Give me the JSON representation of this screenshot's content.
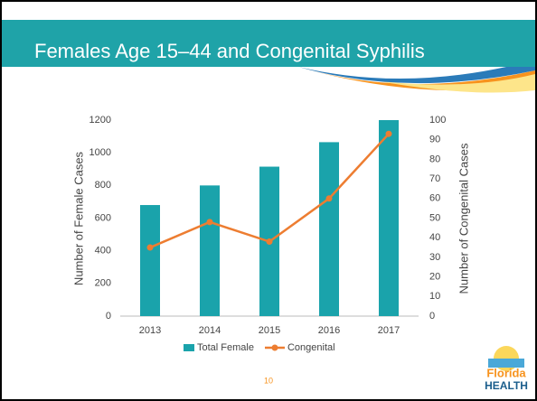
{
  "title": "Females Age 15–44 and Congenital Syphilis",
  "page_number": "10",
  "logo": {
    "line1": "Florida",
    "line2": "HEALTH"
  },
  "chart_data": {
    "type": "bar_line",
    "categories": [
      "2013",
      "2014",
      "2015",
      "2016",
      "2017"
    ],
    "series": [
      {
        "name": "Total Female",
        "color": "#1aa3ab",
        "type": "bar",
        "values": [
          680,
          800,
          915,
          1065,
          1200
        ]
      },
      {
        "name": "Congenital",
        "color": "#ed7d31",
        "type": "line",
        "axis": "y2",
        "values": [
          35,
          48,
          38,
          60,
          93
        ]
      }
    ],
    "ylabel": "Number of Female Cases",
    "y2label": "Number of Congenital Cases",
    "ylim": [
      0,
      1200
    ],
    "yticks": [
      0,
      200,
      400,
      600,
      800,
      1000,
      1200
    ],
    "y2lim": [
      0,
      100
    ],
    "y2ticks": [
      0,
      10,
      20,
      30,
      40,
      50,
      60,
      70,
      80,
      90,
      100
    ],
    "legend": "bottom"
  }
}
